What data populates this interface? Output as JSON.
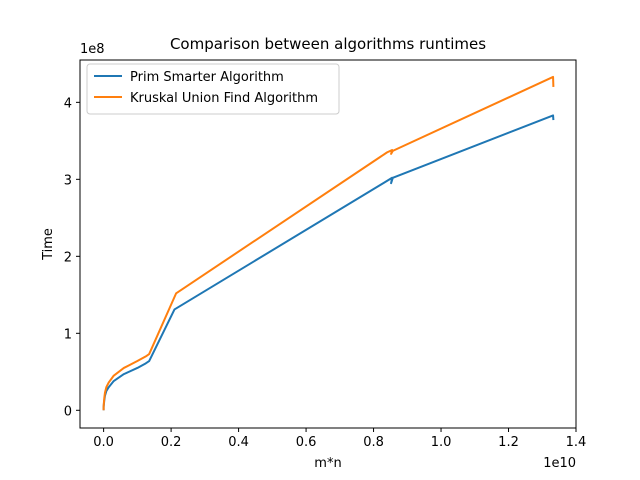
{
  "chart_data": {
    "type": "line",
    "title": "Comparison between algorithms runtimes",
    "xlabel": "m*n",
    "ylabel": "Time",
    "x_offset_text": "1e10",
    "y_offset_text": "1e8",
    "x_scale_factor": 10000000000,
    "y_scale_factor": 100000000,
    "xlim": [
      -0.07,
      1.4
    ],
    "ylim": [
      -0.23,
      4.55
    ],
    "xticks": [
      0.0,
      0.2,
      0.4,
      0.6,
      0.8,
      1.0,
      1.2,
      1.4
    ],
    "xtick_labels": [
      "0.0",
      "0.2",
      "0.4",
      "0.6",
      "0.8",
      "1.0",
      "1.2",
      "1.4"
    ],
    "yticks": [
      0,
      1,
      2,
      3,
      4
    ],
    "ytick_labels": [
      "0",
      "1",
      "2",
      "3",
      "4"
    ],
    "legend_position": "upper left",
    "grid": false,
    "series": [
      {
        "name": "Prim Smarter Algorithm",
        "color": "#1f77b4",
        "points": [
          [
            0.0,
            0.0
          ],
          [
            0.0,
            0.04
          ],
          [
            0.001,
            0.09
          ],
          [
            0.002,
            0.13
          ],
          [
            0.004,
            0.19
          ],
          [
            0.008,
            0.25
          ],
          [
            0.015,
            0.3
          ],
          [
            0.03,
            0.38
          ],
          [
            0.06,
            0.47
          ],
          [
            0.1,
            0.55
          ],
          [
            0.125,
            0.61
          ],
          [
            0.135,
            0.64
          ],
          [
            0.21,
            1.31
          ],
          [
            0.84,
            2.98
          ],
          [
            0.855,
            3.02
          ],
          [
            0.852,
            2.95
          ],
          [
            0.857,
            3.02
          ],
          [
            1.332,
            3.83
          ],
          [
            1.333,
            3.77
          ]
        ]
      },
      {
        "name": "Kruskal Union Find Algorithm",
        "color": "#ff7f0e",
        "points": [
          [
            0.0,
            0.0
          ],
          [
            0.0,
            0.05
          ],
          [
            0.001,
            0.11
          ],
          [
            0.002,
            0.16
          ],
          [
            0.004,
            0.23
          ],
          [
            0.008,
            0.3
          ],
          [
            0.015,
            0.36
          ],
          [
            0.03,
            0.45
          ],
          [
            0.06,
            0.55
          ],
          [
            0.1,
            0.64
          ],
          [
            0.125,
            0.7
          ],
          [
            0.135,
            0.73
          ],
          [
            0.215,
            1.52
          ],
          [
            0.84,
            3.35
          ],
          [
            0.855,
            3.38
          ],
          [
            0.852,
            3.33
          ],
          [
            0.857,
            3.37
          ],
          [
            1.332,
            4.33
          ],
          [
            1.333,
            4.2
          ]
        ]
      }
    ]
  }
}
